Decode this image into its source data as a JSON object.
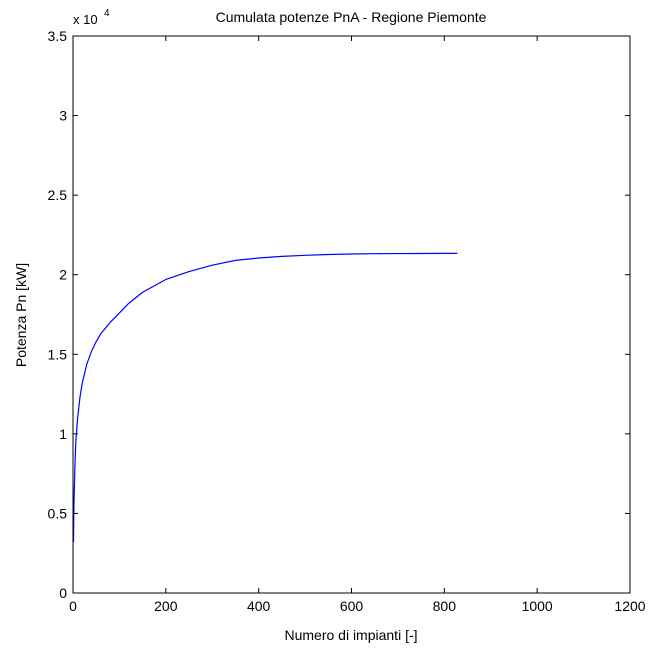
{
  "chart_data": {
    "type": "line",
    "title": "Cumulata potenze PnA - Regione Piemonte",
    "xlabel": "Numero di impianti [-]",
    "ylabel": "Potenza Pn [kW]",
    "y_multiplier_base": "x 10",
    "y_multiplier_exp": "4",
    "xlim": [
      0,
      1200
    ],
    "ylim": [
      0,
      35000
    ],
    "xticks": [
      0,
      200,
      400,
      600,
      800,
      1000,
      1200
    ],
    "xtick_labels": [
      "0",
      "200",
      "400",
      "600",
      "800",
      "1000",
      "1200"
    ],
    "yticks": [
      0,
      5000,
      10000,
      15000,
      20000,
      25000,
      30000,
      35000
    ],
    "ytick_labels": [
      "0",
      "0.5",
      "1",
      "1.5",
      "2",
      "2.5",
      "3",
      "3.5"
    ],
    "grid": false,
    "series": [
      {
        "color": "#0000ff",
        "x": [
          1,
          2,
          4,
          6,
          10,
          15,
          20,
          30,
          40,
          50,
          60,
          80,
          100,
          120,
          150,
          200,
          250,
          300,
          350,
          400,
          450,
          500,
          550,
          600,
          650,
          700,
          750,
          800,
          828
        ],
        "y": [
          3200,
          5500,
          7800,
          9500,
          11000,
          12300,
          13200,
          14400,
          15200,
          15800,
          16300,
          17000,
          17600,
          18200,
          18900,
          19700,
          20200,
          20600,
          20900,
          21050,
          21150,
          21220,
          21270,
          21300,
          21320,
          21330,
          21335,
          21340,
          21340
        ]
      }
    ]
  }
}
